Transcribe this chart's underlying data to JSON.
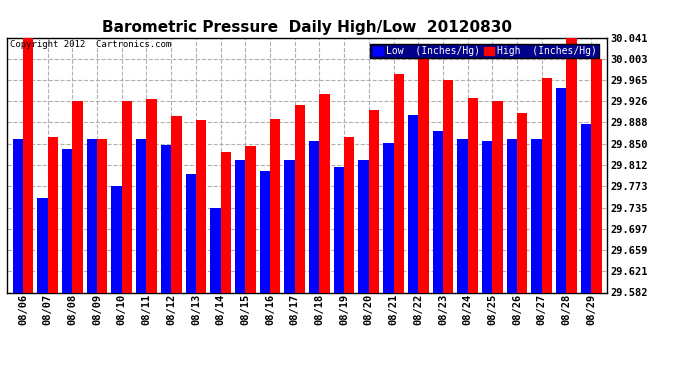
{
  "title": "Barometric Pressure  Daily High/Low  20120830",
  "copyright": "Copyright 2012  Cartronics.com",
  "legend_low": "Low  (Inches/Hg)",
  "legend_high": "High  (Inches/Hg)",
  "dates": [
    "08/06",
    "08/07",
    "08/08",
    "08/09",
    "08/10",
    "08/11",
    "08/12",
    "08/13",
    "08/14",
    "08/15",
    "08/16",
    "08/17",
    "08/18",
    "08/19",
    "08/20",
    "08/21",
    "08/22",
    "08/23",
    "08/24",
    "08/25",
    "08/26",
    "08/27",
    "08/28",
    "08/29"
  ],
  "low": [
    29.858,
    29.752,
    29.84,
    29.858,
    29.773,
    29.858,
    29.848,
    29.795,
    29.735,
    29.82,
    29.8,
    29.82,
    29.855,
    29.808,
    29.82,
    29.852,
    29.902,
    29.873,
    29.858,
    29.855,
    29.858,
    29.858,
    29.95,
    29.885
  ],
  "high": [
    30.041,
    29.862,
    29.926,
    29.858,
    29.926,
    29.93,
    29.9,
    29.893,
    29.835,
    29.845,
    29.895,
    29.92,
    29.94,
    29.862,
    29.91,
    29.976,
    30.003,
    29.965,
    29.932,
    29.926,
    29.906,
    29.968,
    30.041,
    30.003
  ],
  "ylim_min": 29.582,
  "ylim_max": 30.041,
  "yticks": [
    29.582,
    29.621,
    29.659,
    29.697,
    29.735,
    29.773,
    29.812,
    29.85,
    29.888,
    29.926,
    29.965,
    30.003,
    30.041
  ],
  "color_low": "#0000ff",
  "color_high": "#ff0000",
  "bg_color": "#ffffff",
  "plot_bg": "#ffffff",
  "grid_color": "#b0b0b0",
  "title_fontsize": 11,
  "tick_fontsize": 7.5,
  "bar_width": 0.42
}
